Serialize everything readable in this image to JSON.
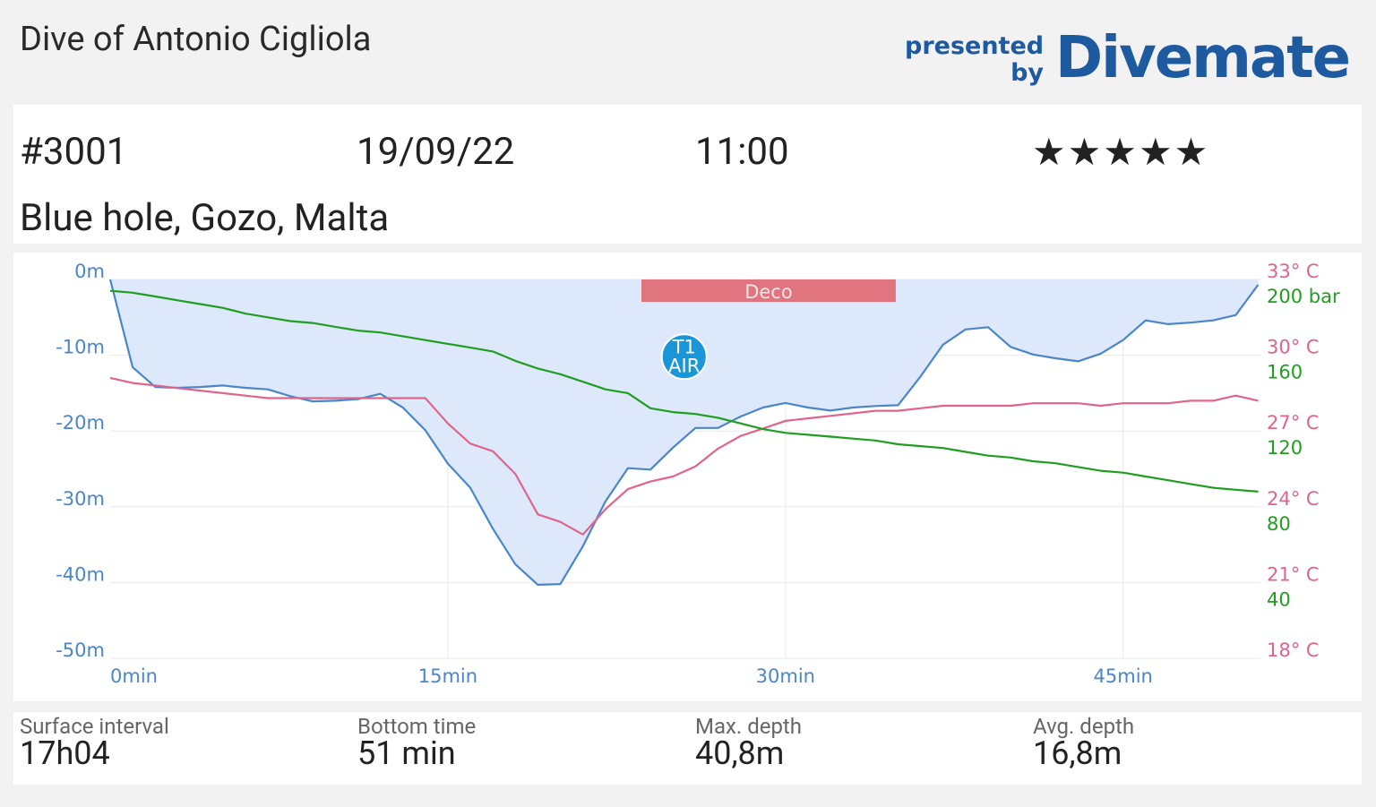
{
  "header": {
    "title": "Dive of Antonio Cigliola",
    "brand_line1": "presented",
    "brand_line2": "by",
    "brand": "Divemate"
  },
  "dive": {
    "number": "#3001",
    "date": "19/09/22",
    "time": "11:00",
    "rating": "★★★★★",
    "location": "Blue hole, Gozo, Malta"
  },
  "chart_data": {
    "type": "line",
    "x": [
      0,
      1,
      2,
      3,
      4,
      5,
      6,
      7,
      8,
      9,
      10,
      11,
      12,
      13,
      14,
      15,
      16,
      17,
      18,
      19,
      20,
      21,
      22,
      23,
      24,
      25,
      26,
      27,
      28,
      29,
      30,
      31,
      32,
      33,
      34,
      35,
      36,
      37,
      38,
      39,
      40,
      41,
      42,
      43,
      44,
      45,
      46,
      47,
      48,
      49,
      50,
      51
    ],
    "xlim": [
      0,
      51.1
    ],
    "xticks": [
      {
        "value": 0,
        "label": "0min"
      },
      {
        "value": 15,
        "label": "15min"
      },
      {
        "value": 30,
        "label": "30min"
      },
      {
        "value": 45,
        "label": "45min"
      }
    ],
    "ylim": [
      -50,
      0
    ],
    "yticks": [
      {
        "value": 0,
        "label": "0m"
      },
      {
        "value": -10,
        "label": "-10m"
      },
      {
        "value": -20,
        "label": "-20m"
      },
      {
        "value": -30,
        "label": "-30m"
      },
      {
        "value": -40,
        "label": "-40m"
      },
      {
        "value": -50,
        "label": "-50m"
      }
    ],
    "y2lim": [
      18,
      33
    ],
    "y2ticks": [
      {
        "value": 33,
        "label": "33° C"
      },
      {
        "value": 30,
        "label": "30° C"
      },
      {
        "value": 27,
        "label": "27° C"
      },
      {
        "value": 24,
        "label": "24° C"
      },
      {
        "value": 21,
        "label": "21° C"
      },
      {
        "value": 18,
        "label": "18° C"
      }
    ],
    "y3lim": [
      0,
      200
    ],
    "y3ticks": [
      {
        "value": 200,
        "label": "200 bar"
      },
      160,
      120,
      80,
      40
    ],
    "grid": true,
    "series": [
      {
        "color": "#4a86c8",
        "fill": "#dde8fa",
        "axis": "y",
        "values": [
          0,
          -11.6,
          -14.2,
          -14.3,
          -14.2,
          -14.0,
          -14.3,
          -14.5,
          -15.4,
          -16.1,
          -16.0,
          -15.8,
          -15.1,
          -16.9,
          -19.9,
          -24.3,
          -27.5,
          -32.9,
          -37.6,
          -40.3,
          -40.2,
          -35.2,
          -29.3,
          -24.9,
          -25.1,
          -22.2,
          -19.6,
          -19.6,
          -18.1,
          -16.9,
          -16.3,
          -16.9,
          -17.3,
          -16.9,
          -16.7,
          -16.6,
          -12.8,
          -8.6,
          -6.6,
          -6.3,
          -8.9,
          -9.9,
          -10.4,
          -10.8,
          -9.8,
          -8.0,
          -5.4,
          -5.9,
          -5.7,
          -5.4,
          -4.7,
          -0.7
        ]
      },
      {
        "color": "#e0648c",
        "axis": "y2",
        "values": [
          29.1,
          28.9,
          28.8,
          28.7,
          28.6,
          28.5,
          28.4,
          28.3,
          28.3,
          28.3,
          28.3,
          28.3,
          28.3,
          28.3,
          28.3,
          27.3,
          26.5,
          26.2,
          25.3,
          23.7,
          23.4,
          22.9,
          23.9,
          24.7,
          25.0,
          25.2,
          25.6,
          26.3,
          26.8,
          27.1,
          27.4,
          27.5,
          27.6,
          27.7,
          27.8,
          27.8,
          27.9,
          28.0,
          28.0,
          28.0,
          28.0,
          28.1,
          28.1,
          28.1,
          28.0,
          28.1,
          28.1,
          28.1,
          28.2,
          28.2,
          28.4,
          28.2
        ]
      },
      {
        "color": "#1f9e1f",
        "axis": "y3",
        "values": [
          194,
          193,
          191,
          189,
          187,
          185,
          182,
          180,
          178,
          177,
          175,
          173,
          172,
          170,
          168,
          166,
          164,
          162,
          157,
          153,
          150,
          146,
          142,
          140,
          132,
          130,
          129,
          127,
          124,
          121,
          119,
          118,
          117,
          116,
          115,
          113,
          112,
          111,
          109,
          107,
          106,
          104,
          103,
          101,
          99,
          98,
          96,
          94,
          92,
          90,
          89,
          88
        ]
      }
    ],
    "annotations": [
      {
        "label": "Deco",
        "start": 23.6,
        "end": 34.9,
        "color": "#e07580"
      },
      {
        "tank": "T1",
        "gas": "AIR",
        "x": 25.5,
        "y": -10.2,
        "color": "#1a96d8"
      }
    ]
  },
  "stats": [
    {
      "label": "Surface interval",
      "value": "17h04"
    },
    {
      "label": "Bottom time",
      "value": "51 min"
    },
    {
      "label": "Max. depth",
      "value": "40,8m"
    },
    {
      "label": "Avg. depth",
      "value": "16,8m"
    }
  ]
}
